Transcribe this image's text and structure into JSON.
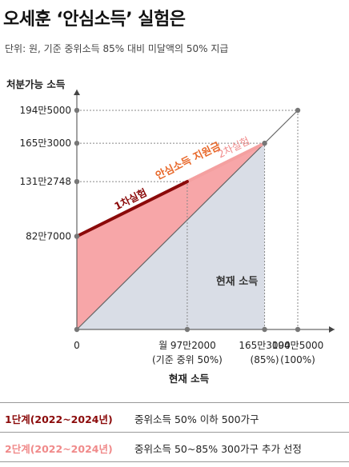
{
  "header": {
    "title": "오세훈 ‘안심소득’ 실험은",
    "subtitle": "단위: 원, 기준 중위소득 85% 대비 미달액의 50% 지급"
  },
  "chart_data": {
    "type": "line",
    "ylabel": "처분가능 소득",
    "xlabel": "현재 소득",
    "xlim": [
      0,
      1945000
    ],
    "ylim": [
      0,
      1945000
    ],
    "x_ticks": [
      {
        "value": 0,
        "label": "0",
        "sub": ""
      },
      {
        "value": 972000,
        "label": "월 97만2000",
        "sub": "(기준 중위 50%)"
      },
      {
        "value": 1653000,
        "label": "165만3000",
        "sub": "(85%)"
      },
      {
        "value": 1945000,
        "label": "194만5000",
        "sub": "(100%)"
      }
    ],
    "y_ticks": [
      {
        "value": 827000,
        "label": "82만7000"
      },
      {
        "value": 1312748,
        "label": "131만2748"
      },
      {
        "value": 1653000,
        "label": "165만3000"
      },
      {
        "value": 1945000,
        "label": "194만5000"
      }
    ],
    "series": [
      {
        "name": "",
        "color": "#8b0a0a",
        "x": [
          0,
          972000
        ],
        "y": [
          827000,
          1312748
        ]
      },
      {
        "name": "",
        "color": "#f4a0a0",
        "x": [
          972000,
          1653000
        ],
        "y": [
          1312748,
          1653000
        ]
      },
      {
        "name": "",
        "color": "#666666",
        "x": [
          0,
          1945000
        ],
        "y": [
          0,
          1945000
        ]
      }
    ],
    "annotations": {
      "subsidy": "안심소득 지원금",
      "phase1": "1차실험",
      "phase2": "2차실험",
      "current_income": "현재 소득"
    },
    "colors": {
      "subsidy_area": "#f7a6a8",
      "income_area": "#d9dde6",
      "phase1": "#8b0a0a",
      "phase2": "#f4a0a0",
      "subsidy_label": "#e8682a"
    }
  },
  "notes": [
    {
      "stage": "1단계(2022~2024년)",
      "text": "중위소득 50% 이하 500가구"
    },
    {
      "stage": "2단계(2022~2024년)",
      "text": "중위소득 50~85% 300가구 추가 선정"
    }
  ]
}
